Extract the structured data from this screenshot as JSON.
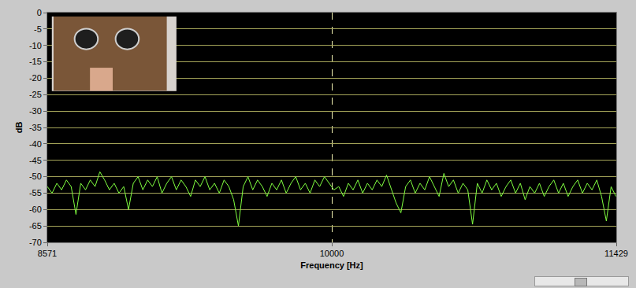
{
  "chart_data": {
    "type": "line",
    "x_label": "Frequency [Hz]",
    "y_label": "dB",
    "x": [
      8571,
      8595,
      8619,
      8643,
      8667,
      8691,
      8715,
      8739,
      8763,
      8787,
      8811,
      8835,
      8859,
      8883,
      8907,
      8931,
      8955,
      8979,
      9003,
      9027,
      9051,
      9075,
      9099,
      9123,
      9147,
      9171,
      9195,
      9219,
      9243,
      9267,
      9291,
      9315,
      9339,
      9363,
      9387,
      9411,
      9435,
      9459,
      9483,
      9507,
      9531,
      9555,
      9579,
      9603,
      9627,
      9651,
      9675,
      9699,
      9723,
      9747,
      9771,
      9795,
      9819,
      9843,
      9867,
      9891,
      9915,
      9939,
      9963,
      9987,
      10011,
      10035,
      10059,
      10083,
      10107,
      10131,
      10155,
      10179,
      10203,
      10227,
      10251,
      10275,
      10299,
      10323,
      10347,
      10371,
      10395,
      10419,
      10443,
      10467,
      10491,
      10515,
      10539,
      10563,
      10587,
      10611,
      10635,
      10659,
      10683,
      10707,
      10731,
      10755,
      10779,
      10803,
      10827,
      10851,
      10875,
      10899,
      10923,
      10947,
      10971,
      10995,
      11019,
      11043,
      11067,
      11091,
      11115,
      11139,
      11163,
      11187,
      11211,
      11235,
      11259,
      11283,
      11307,
      11331,
      11355,
      11379,
      11403,
      11427
    ],
    "values": [
      -53,
      -55,
      -52,
      -54,
      -51,
      -53,
      -61.5,
      -52,
      -54,
      -51,
      -53,
      -48.5,
      -51,
      -54,
      -52,
      -55,
      -53,
      -60,
      -52,
      -50,
      -54,
      -51,
      -53,
      -50,
      -55,
      -52,
      -50,
      -54,
      -51,
      -53,
      -56,
      -51,
      -53,
      -50,
      -54,
      -52,
      -55,
      -51,
      -53,
      -57,
      -65,
      -53,
      -50,
      -54,
      -51,
      -53,
      -56,
      -52,
      -54,
      -51,
      -55,
      -52,
      -50,
      -54,
      -52,
      -55,
      -51,
      -53,
      -50,
      -52,
      -54,
      -53,
      -56,
      -52,
      -54,
      -51,
      -55,
      -52,
      -54,
      -51,
      -53,
      -49.5,
      -54,
      -58,
      -61,
      -53,
      -51,
      -55,
      -52,
      -54,
      -50,
      -53,
      -56,
      -49,
      -53,
      -51,
      -55,
      -52,
      -54,
      -64.5,
      -52,
      -55,
      -51,
      -54,
      -52,
      -56,
      -53,
      -51,
      -55,
      -52,
      -57,
      -53,
      -55,
      -52,
      -56,
      -53,
      -51,
      -55,
      -52,
      -56,
      -53,
      -51,
      -55,
      -52,
      -54,
      -51,
      -56,
      -63.5,
      -53,
      -56
    ],
    "color": "#80ff40",
    "xlim": [
      8571,
      11429
    ],
    "xticks": [
      8571,
      10000,
      11429
    ],
    "ylim": [
      -70,
      0
    ],
    "yticks": [
      0,
      -5,
      -10,
      -15,
      -20,
      -25,
      -30,
      -35,
      -40,
      -45,
      -50,
      -55,
      -60,
      -65,
      -70
    ],
    "grid": true
  }
}
